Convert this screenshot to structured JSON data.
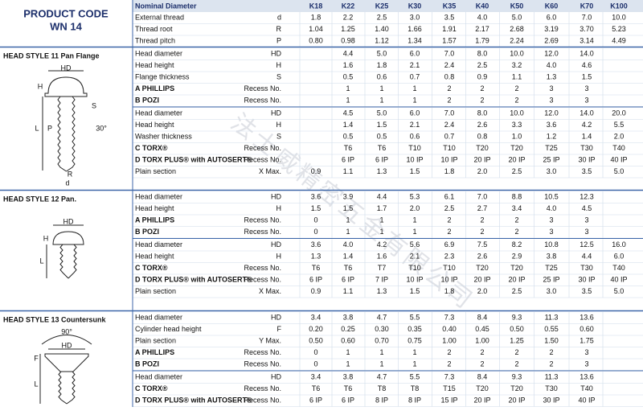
{
  "header": {
    "product_code": "PRODUCT CODE",
    "code": "WN 14",
    "nominal": "Nominal Diameter",
    "sizes": [
      "K18",
      "K22",
      "K25",
      "K30",
      "K35",
      "K40",
      "K50",
      "K60",
      "K70",
      "K100"
    ]
  },
  "watermark": "法士威精密五金有限公司",
  "general": [
    {
      "label": "External thread",
      "symbol": "d",
      "values": [
        "1.8",
        "2.2",
        "2.5",
        "3.0",
        "3.5",
        "4.0",
        "5.0",
        "6.0",
        "7.0",
        "10.0"
      ]
    },
    {
      "label": "Thread root",
      "symbol": "R",
      "values": [
        "1.04",
        "1.25",
        "1.40",
        "1.66",
        "1.91",
        "2.17",
        "2.68",
        "3.19",
        "3.70",
        "5.23"
      ]
    },
    {
      "label": "Thread pitch",
      "symbol": "P",
      "values": [
        "0.80",
        "0.98",
        "1.12",
        "1.34",
        "1.57",
        "1.79",
        "2.24",
        "2.69",
        "3.14",
        "4.49"
      ]
    }
  ],
  "sections": [
    {
      "title": "HEAD STYLE 11 Pan Flange",
      "drawing_labels": [
        "HD",
        "H",
        "L",
        "P",
        "S",
        "30°",
        "R",
        "d"
      ],
      "groups": [
        [
          {
            "label": "Head diameter",
            "symbol": "HD",
            "values": [
              null,
              "4.4",
              "5.0",
              "6.0",
              "7.0",
              "8.0",
              "10.0",
              "12.0",
              "14.0",
              null
            ]
          },
          {
            "label": "Head height",
            "symbol": "H",
            "values": [
              null,
              "1.6",
              "1.8",
              "2.1",
              "2.4",
              "2.5",
              "3.2",
              "4.0",
              "4.6",
              null
            ]
          },
          {
            "label": "Flange thickness",
            "symbol": "S",
            "values": [
              null,
              "0.5",
              "0.6",
              "0.7",
              "0.8",
              "0.9",
              "1.1",
              "1.3",
              "1.5",
              null
            ]
          },
          {
            "label": "A PHILLIPS",
            "bold": true,
            "symbol": "Recess No.",
            "values": [
              null,
              "1",
              "1",
              "1",
              "2",
              "2",
              "2",
              "3",
              "3",
              null
            ]
          },
          {
            "label": "B POZI",
            "bold": true,
            "symbol": "Recess No.",
            "values": [
              null,
              "1",
              "1",
              "1",
              "2",
              "2",
              "2",
              "3",
              "3",
              null
            ]
          }
        ],
        [
          {
            "label": "Head diameter",
            "symbol": "HD",
            "values": [
              null,
              "4.5",
              "5.0",
              "6.0",
              "7.0",
              "8.0",
              "10.0",
              "12.0",
              "14.0",
              "20.0"
            ]
          },
          {
            "label": "Head height",
            "symbol": "H",
            "values": [
              null,
              "1.4",
              "1.5",
              "2.1",
              "2.4",
              "2.6",
              "3.3",
              "3.6",
              "4.2",
              "5.5"
            ]
          },
          {
            "label": "Washer thickness",
            "symbol": "S",
            "values": [
              null,
              "0.5",
              "0.5",
              "0.6",
              "0.7",
              "0.8",
              "1.0",
              "1.2",
              "1.4",
              "2.0"
            ]
          },
          {
            "label": "C TORX®",
            "bold": true,
            "symbol": "Recess No.",
            "values": [
              null,
              "T6",
              "T6",
              "T10",
              "T10",
              "T20",
              "T20",
              "T25",
              "T30",
              "T40"
            ]
          },
          {
            "label": "D TORX PLUS® with AUTOSERT®",
            "bold": true,
            "symbol": "Recess No.",
            "values": [
              null,
              "6 IP",
              "6 IP",
              "10 IP",
              "10 IP",
              "20 IP",
              "20 IP",
              "25 IP",
              "30 IP",
              "40 IP"
            ]
          },
          {
            "label": "Plain section",
            "symbol": "X Max.",
            "values": [
              "0.9",
              "1.1",
              "1.3",
              "1.5",
              "1.8",
              "2.0",
              "2.5",
              "3.0",
              "3.5",
              "5.0"
            ]
          }
        ]
      ]
    },
    {
      "title": "HEAD STYLE 12 Pan.",
      "drawing_labels": [
        "HD",
        "H",
        "L"
      ],
      "groups": [
        [
          {
            "label": "Head diameter",
            "symbol": "HD",
            "values": [
              "3.6",
              "3.9",
              "4.4",
              "5.3",
              "6.1",
              "7.0",
              "8.8",
              "10.5",
              "12.3",
              null
            ]
          },
          {
            "label": "Head height",
            "symbol": "H",
            "values": [
              "1.5",
              "1.5",
              "1.7",
              "2.0",
              "2.5",
              "2.7",
              "3.4",
              "4.0",
              "4.5",
              null
            ]
          },
          {
            "label": "A PHILLIPS",
            "bold": true,
            "symbol": "Recess No.",
            "values": [
              "0",
              "1",
              "1",
              "1",
              "2",
              "2",
              "2",
              "3",
              "3",
              null
            ]
          },
          {
            "label": "B POZI",
            "bold": true,
            "symbol": "Recess No.",
            "values": [
              "0",
              "1",
              "1",
              "1",
              "2",
              "2",
              "2",
              "3",
              "3",
              null
            ]
          }
        ],
        [
          {
            "label": "Head diameter",
            "symbol": "HD",
            "values": [
              "3.6",
              "4.0",
              "4.2",
              "5.6",
              "6.9",
              "7.5",
              "8.2",
              "10.8",
              "12.5",
              "16.0"
            ]
          },
          {
            "label": "Head height",
            "symbol": "H",
            "values": [
              "1.3",
              "1.4",
              "1.6",
              "2.1",
              "2.3",
              "2.6",
              "2.9",
              "3.8",
              "4.4",
              "6.0"
            ]
          },
          {
            "label": "C TORX®",
            "bold": true,
            "symbol": "Recess No.",
            "values": [
              "T6",
              "T6",
              "T7",
              "T10",
              "T10",
              "T20",
              "T20",
              "T25",
              "T30",
              "T40"
            ]
          },
          {
            "label": "D TORX PLUS® with AUTOSERT®",
            "bold": true,
            "symbol": "Recess No.",
            "values": [
              "6 IP",
              "6 IP",
              "7 IP",
              "10 IP",
              "10 IP",
              "20 IP",
              "20 IP",
              "25 IP",
              "30 IP",
              "40 IP"
            ]
          },
          {
            "label": "Plain section",
            "symbol": "X Max.",
            "values": [
              "0.9",
              "1.1",
              "1.3",
              "1.5",
              "1.8",
              "2.0",
              "2.5",
              "3.0",
              "3.5",
              "5.0"
            ]
          }
        ]
      ]
    },
    {
      "title": "HEAD STYLE 13 Countersunk",
      "drawing_labels": [
        "90°",
        "HD",
        "F",
        "L"
      ],
      "groups": [
        [
          {
            "label": "Head diameter",
            "symbol": "HD",
            "values": [
              "3.4",
              "3.8",
              "4.7",
              "5.5",
              "7.3",
              "8.4",
              "9.3",
              "11.3",
              "13.6",
              null
            ]
          },
          {
            "label": "Cylinder head height",
            "symbol": "F",
            "values": [
              "0.20",
              "0.25",
              "0.30",
              "0.35",
              "0.40",
              "0.45",
              "0.50",
              "0.55",
              "0.60",
              null
            ]
          },
          {
            "label": "Plain section",
            "symbol": "Y Max.",
            "values": [
              "0.50",
              "0.60",
              "0.70",
              "0.75",
              "1.00",
              "1.00",
              "1.25",
              "1.50",
              "1.75",
              null
            ]
          },
          {
            "label": "A PHILLIPS",
            "bold": true,
            "symbol": "Recess No.",
            "values": [
              "0",
              "1",
              "1",
              "1",
              "2",
              "2",
              "2",
              "2",
              "3",
              null
            ]
          },
          {
            "label": "B POZI",
            "bold": true,
            "symbol": "Recess No.",
            "values": [
              "0",
              "1",
              "1",
              "1",
              "2",
              "2",
              "2",
              "2",
              "3",
              null
            ]
          }
        ],
        [
          {
            "label": "Head diameter",
            "symbol": "HD",
            "values": [
              "3.4",
              "3.8",
              "4.7",
              "5.5",
              "7.3",
              "8.4",
              "9.3",
              "11.3",
              "13.6",
              null
            ]
          },
          {
            "label": "C TORX®",
            "bold": true,
            "symbol": "Recess No.",
            "values": [
              "T6",
              "T6",
              "T8",
              "T8",
              "T15",
              "T20",
              "T20",
              "T30",
              "T40",
              null
            ]
          },
          {
            "label": "D TORX PLUS® with AUTOSERT®",
            "bold": true,
            "symbol": "Recess No.",
            "values": [
              "6 IP",
              "6 IP",
              "8 IP",
              "8 IP",
              "15 IP",
              "20 IP",
              "20 IP",
              "30 IP",
              "40 IP",
              null
            ]
          }
        ]
      ]
    }
  ]
}
